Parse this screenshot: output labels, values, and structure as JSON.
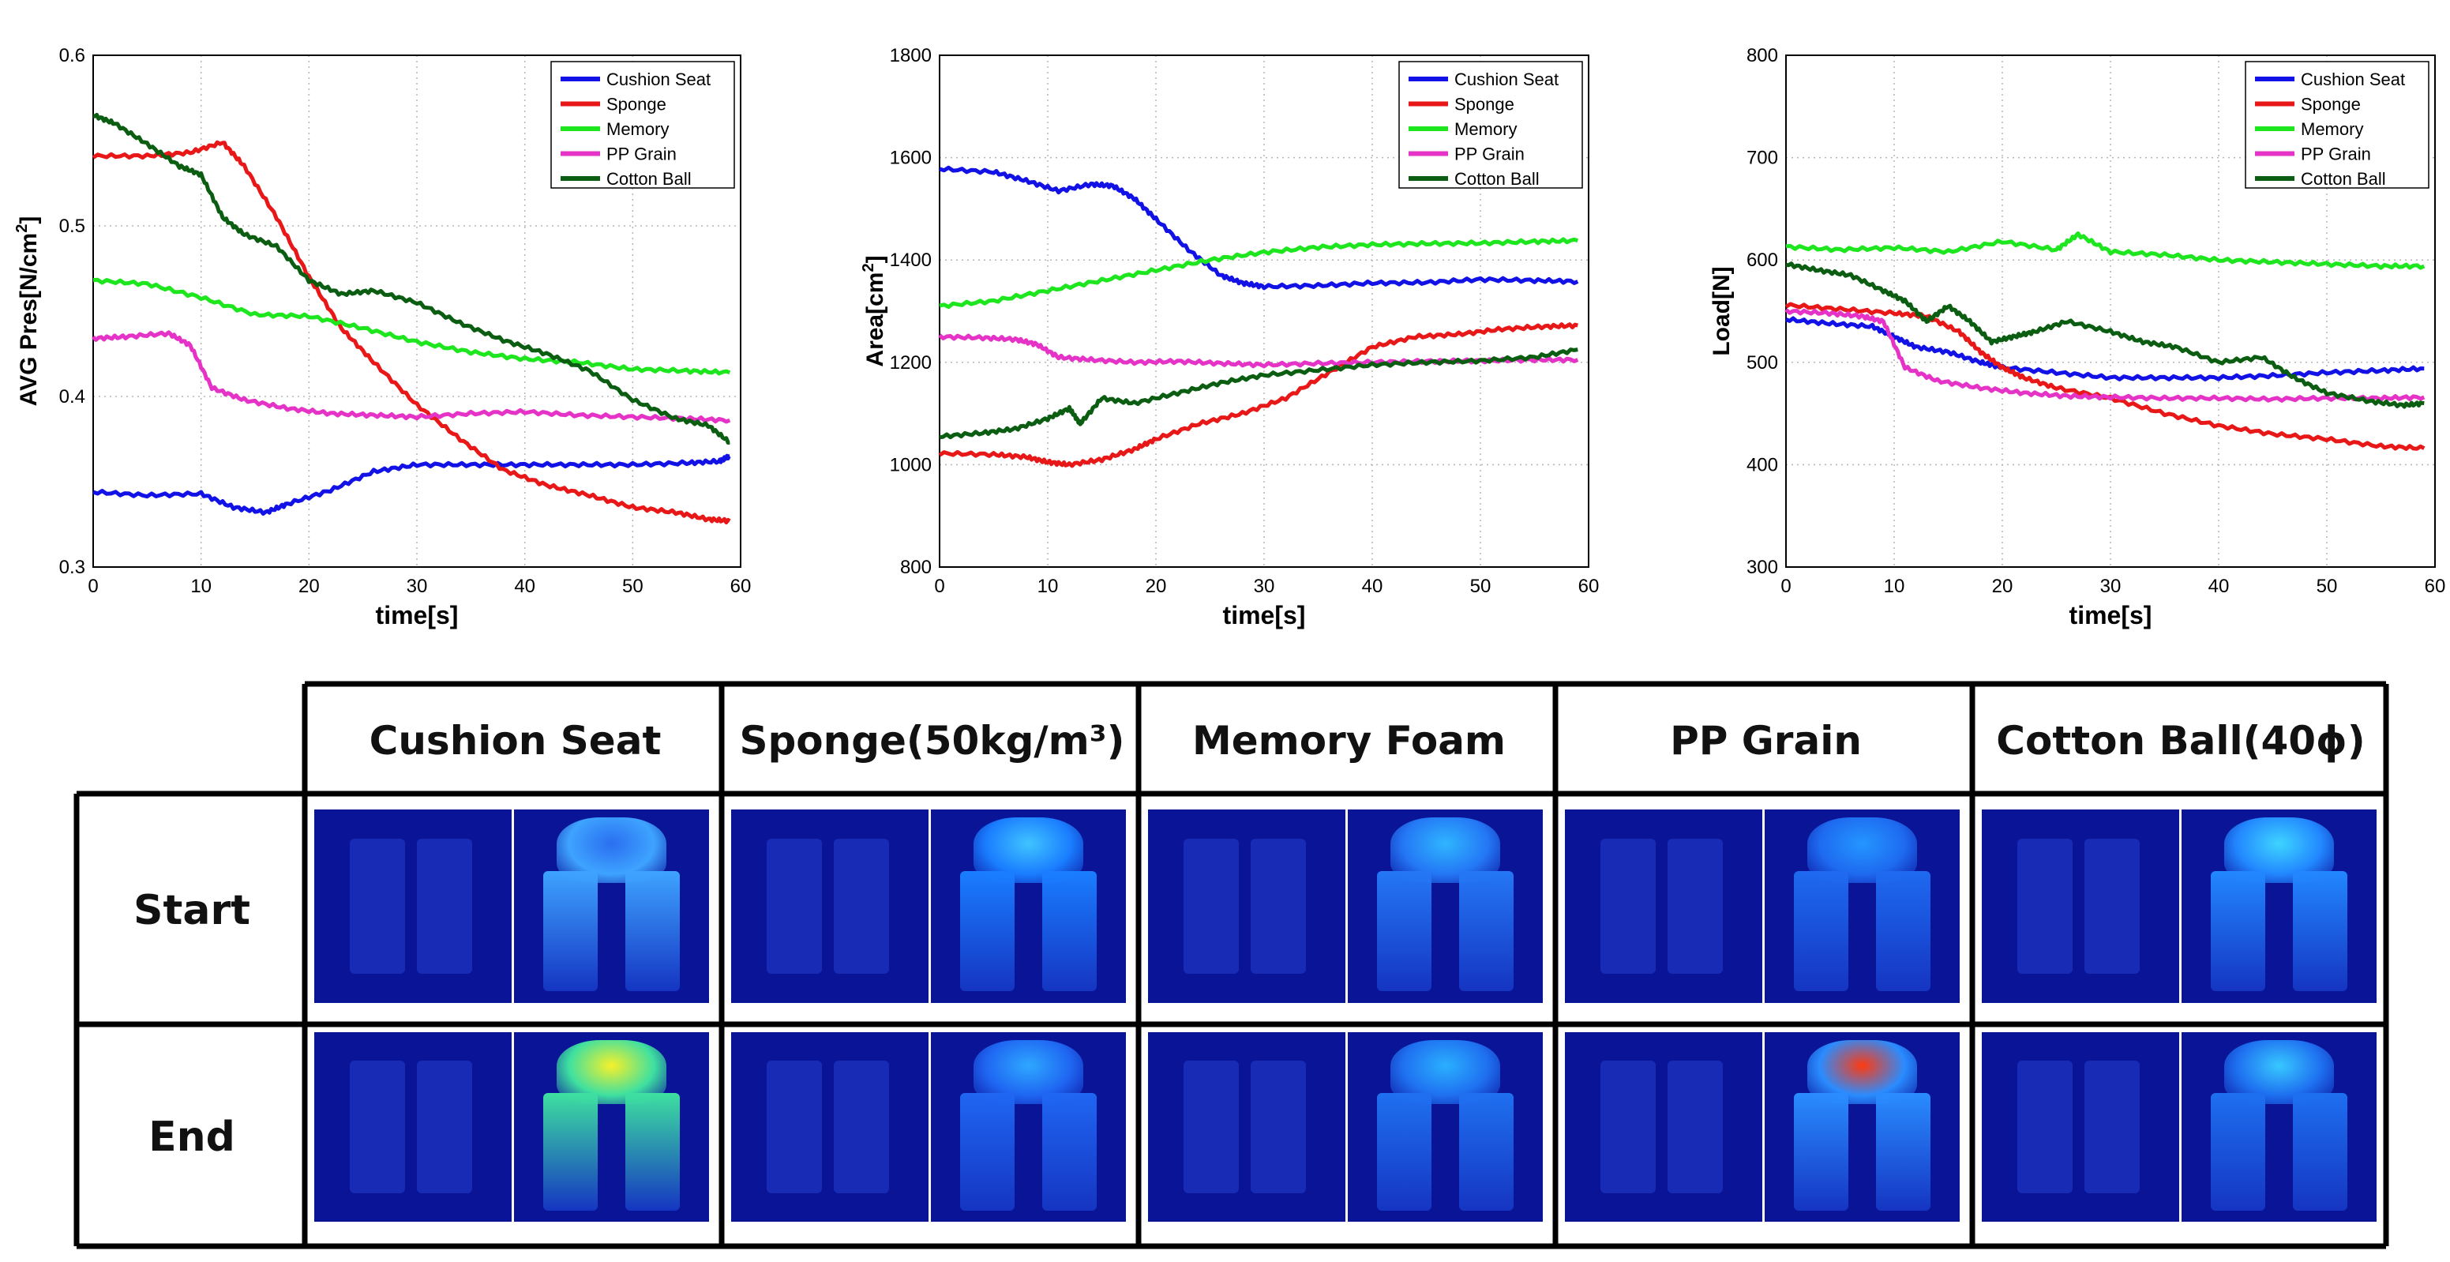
{
  "chart_data": [
    {
      "type": "line",
      "xlabel": "time[s]",
      "ylabel": "AVG Pres[N/cm²]",
      "ylabel_base": "AVG Pres[N/cm",
      "ylabel_sup": "2",
      "ylabel_end": "]",
      "xlim": [
        0,
        60
      ],
      "ylim": [
        0.3,
        0.6
      ],
      "xticks": [
        "0",
        "10",
        "20",
        "30",
        "40",
        "50",
        "60"
      ],
      "yticks": [
        "0.3",
        "0.4",
        "0.5",
        "0.6"
      ],
      "grid": true,
      "legend": "top-right",
      "series": [
        {
          "name": "Cushion Seat",
          "color": "#1212e6",
          "x": [
            0,
            5,
            10,
            13,
            16,
            18,
            22,
            26,
            30,
            35,
            40,
            45,
            50,
            55,
            58,
            59
          ],
          "y": [
            0.344,
            0.342,
            0.343,
            0.335,
            0.332,
            0.337,
            0.345,
            0.356,
            0.36,
            0.36,
            0.36,
            0.36,
            0.36,
            0.361,
            0.362,
            0.365
          ]
        },
        {
          "name": "Sponge",
          "color": "#e81818",
          "x": [
            0,
            5,
            9,
            12,
            14,
            17,
            20,
            23,
            26,
            30,
            34,
            38,
            42,
            46,
            50,
            54,
            57,
            59
          ],
          "y": [
            0.541,
            0.541,
            0.543,
            0.549,
            0.535,
            0.505,
            0.47,
            0.44,
            0.42,
            0.395,
            0.375,
            0.357,
            0.348,
            0.342,
            0.335,
            0.332,
            0.328,
            0.327
          ]
        },
        {
          "name": "Memory",
          "color": "#1ee61e",
          "x": [
            0,
            5,
            10,
            15,
            20,
            25,
            30,
            35,
            40,
            45,
            50,
            55,
            59
          ],
          "y": [
            0.468,
            0.466,
            0.458,
            0.448,
            0.447,
            0.44,
            0.432,
            0.426,
            0.422,
            0.42,
            0.416,
            0.415,
            0.414
          ]
        },
        {
          "name": "PP Grain",
          "color": "#e633c7",
          "x": [
            0,
            3,
            7,
            9,
            11,
            14,
            18,
            22,
            26,
            30,
            35,
            40,
            45,
            50,
            55,
            59
          ],
          "y": [
            0.434,
            0.435,
            0.437,
            0.43,
            0.405,
            0.398,
            0.393,
            0.39,
            0.389,
            0.388,
            0.39,
            0.391,
            0.389,
            0.388,
            0.387,
            0.386
          ]
        },
        {
          "name": "Cotton Ball",
          "color": "#0b5e11",
          "x": [
            0,
            2,
            5,
            8,
            10,
            12,
            14,
            17,
            20,
            23,
            26,
            30,
            34,
            38,
            42,
            46,
            50,
            54,
            57,
            59
          ],
          "y": [
            0.565,
            0.56,
            0.548,
            0.535,
            0.53,
            0.505,
            0.495,
            0.488,
            0.468,
            0.46,
            0.462,
            0.455,
            0.443,
            0.433,
            0.425,
            0.415,
            0.398,
            0.387,
            0.383,
            0.373
          ]
        }
      ]
    },
    {
      "type": "line",
      "xlabel": "time[s]",
      "ylabel": "Area[cm²]",
      "ylabel_base": "Area[cm",
      "ylabel_sup": "2",
      "ylabel_end": "]",
      "xlim": [
        0,
        60
      ],
      "ylim": [
        800,
        1800
      ],
      "xticks": [
        "0",
        "10",
        "20",
        "30",
        "40",
        "50",
        "60"
      ],
      "yticks": [
        "800",
        "1000",
        "1200",
        "1400",
        "1600",
        "1800"
      ],
      "grid": true,
      "legend": "top-right",
      "series": [
        {
          "name": "Cushion Seat",
          "color": "#1212e6",
          "x": [
            0,
            5,
            8,
            11,
            14,
            16,
            18,
            20,
            23,
            26,
            28,
            30,
            35,
            40,
            45,
            50,
            55,
            59
          ],
          "y": [
            1578,
            1572,
            1555,
            1535,
            1548,
            1545,
            1520,
            1480,
            1420,
            1370,
            1355,
            1348,
            1350,
            1355,
            1356,
            1362,
            1360,
            1358
          ]
        },
        {
          "name": "Sponge",
          "color": "#e81818",
          "x": [
            0,
            5,
            8,
            10,
            12,
            15,
            18,
            20,
            24,
            28,
            32,
            36,
            40,
            44,
            48,
            52,
            56,
            59
          ],
          "y": [
            1022,
            1020,
            1015,
            1005,
            1000,
            1010,
            1030,
            1050,
            1080,
            1100,
            1130,
            1180,
            1230,
            1250,
            1255,
            1265,
            1270,
            1272
          ]
        },
        {
          "name": "Memory",
          "color": "#1ee61e",
          "x": [
            0,
            5,
            10,
            15,
            20,
            25,
            30,
            35,
            40,
            45,
            50,
            55,
            59
          ],
          "y": [
            1310,
            1320,
            1340,
            1360,
            1380,
            1400,
            1415,
            1425,
            1430,
            1432,
            1433,
            1436,
            1438
          ]
        },
        {
          "name": "PP Grain",
          "color": "#e633c7",
          "x": [
            0,
            4,
            7,
            9,
            11,
            14,
            18,
            22,
            26,
            30,
            35,
            40,
            45,
            50,
            55,
            59
          ],
          "y": [
            1250,
            1248,
            1245,
            1235,
            1210,
            1205,
            1200,
            1202,
            1198,
            1195,
            1198,
            1200,
            1202,
            1203,
            1205,
            1205
          ]
        },
        {
          "name": "Cotton Ball",
          "color": "#0b5e11",
          "x": [
            0,
            4,
            7,
            10,
            12,
            13,
            15,
            18,
            22,
            26,
            30,
            35,
            40,
            45,
            50,
            55,
            59
          ],
          "y": [
            1055,
            1062,
            1070,
            1090,
            1110,
            1080,
            1130,
            1120,
            1140,
            1160,
            1175,
            1185,
            1195,
            1200,
            1203,
            1210,
            1225
          ]
        }
      ]
    },
    {
      "type": "line",
      "xlabel": "time[s]",
      "ylabel": "Load[N]",
      "xlim": [
        0,
        60
      ],
      "ylim": [
        300,
        800
      ],
      "xticks": [
        "0",
        "10",
        "20",
        "30",
        "40",
        "50",
        "60"
      ],
      "yticks": [
        "300",
        "400",
        "500",
        "600",
        "700",
        "800"
      ],
      "grid": true,
      "legend": "top-right",
      "series": [
        {
          "name": "Cushion Seat",
          "color": "#1212e6",
          "x": [
            0,
            4,
            8,
            10,
            12,
            15,
            18,
            20,
            25,
            30,
            35,
            40,
            45,
            50,
            55,
            59
          ],
          "y": [
            542,
            538,
            535,
            525,
            515,
            510,
            500,
            495,
            490,
            485,
            485,
            485,
            487,
            490,
            492,
            494
          ]
        },
        {
          "name": "Sponge",
          "color": "#e81818",
          "x": [
            0,
            5,
            10,
            13,
            16,
            18,
            20,
            22,
            25,
            30,
            35,
            40,
            45,
            50,
            55,
            59
          ],
          "y": [
            556,
            552,
            548,
            545,
            530,
            510,
            495,
            485,
            475,
            465,
            450,
            438,
            430,
            425,
            418,
            416
          ]
        },
        {
          "name": "Memory",
          "color": "#1ee61e",
          "x": [
            0,
            5,
            10,
            15,
            20,
            25,
            27,
            30,
            35,
            40,
            45,
            50,
            55,
            59
          ],
          "y": [
            613,
            610,
            612,
            608,
            618,
            610,
            625,
            608,
            605,
            600,
            598,
            596,
            594,
            594
          ]
        },
        {
          "name": "PP Grain",
          "color": "#e633c7",
          "x": [
            0,
            4,
            7,
            9,
            11,
            14,
            18,
            22,
            26,
            30,
            35,
            40,
            45,
            50,
            55,
            59
          ],
          "y": [
            550,
            548,
            545,
            540,
            495,
            482,
            475,
            470,
            467,
            466,
            465,
            465,
            464,
            465,
            465,
            466
          ]
        },
        {
          "name": "Cotton Ball",
          "color": "#0b5e11",
          "x": [
            0,
            3,
            6,
            9,
            11,
            13,
            15,
            17,
            19,
            21,
            23,
            26,
            30,
            33,
            36,
            40,
            44,
            47,
            50,
            54,
            57,
            59
          ],
          "y": [
            596,
            590,
            585,
            570,
            560,
            540,
            555,
            540,
            520,
            525,
            530,
            540,
            530,
            520,
            515,
            500,
            505,
            485,
            470,
            462,
            458,
            460
          ]
        }
      ]
    }
  ],
  "table": {
    "columns": [
      "Cushion Seat",
      "Sponge(50kg/m³)",
      "Memory Foam",
      "PP Grain",
      "Cotton Ball(40ϕ)"
    ],
    "rows": [
      "Start",
      "End"
    ]
  }
}
